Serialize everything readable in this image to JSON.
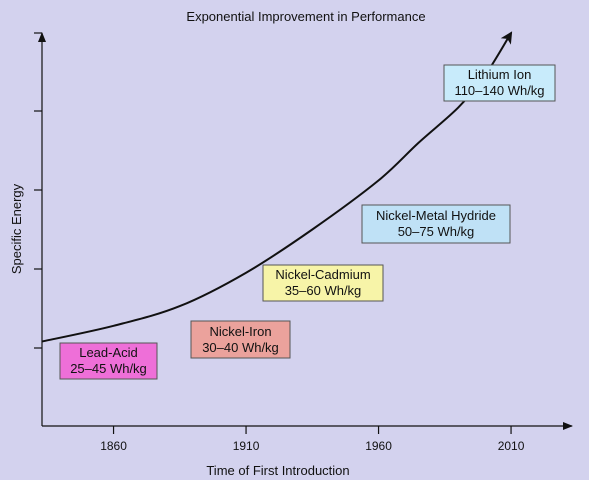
{
  "chart_data": {
    "type": "line",
    "title": "Exponential Improvement in Performance",
    "xlabel": "Time of First Introduction",
    "ylabel": "Specific Energy",
    "xlim": [
      1833,
      2033
    ],
    "x_ticks": [
      1860,
      1910,
      1960,
      2010
    ],
    "grid": false,
    "series": [
      {
        "x": [
          1833,
          1860,
          1885,
          1910,
          1935,
          1960,
          1975,
          1990,
          2000,
          2010
        ],
        "y": [
          0.215,
          0.255,
          0.305,
          0.39,
          0.5,
          0.625,
          0.72,
          0.81,
          0.89,
          1.0
        ]
      }
    ],
    "annotations": [
      {
        "name": "Lead-Acid",
        "range": "25–45 Wh/kg",
        "color": "#ee6fd8"
      },
      {
        "name": "Nickel-Iron",
        "range": "30–40 Wh/kg",
        "color": "#eba29c"
      },
      {
        "name": "Nickel-Cadmium",
        "range": "35–60 Wh/kg",
        "color": "#f7f4a8"
      },
      {
        "name": "Nickel-Metal Hydride",
        "range": "50–75 Wh/kg",
        "color": "#bfe1f6"
      },
      {
        "name": "Lithium Ion",
        "range": "110–140 Wh/kg",
        "color": "#c8ebfb"
      }
    ]
  }
}
